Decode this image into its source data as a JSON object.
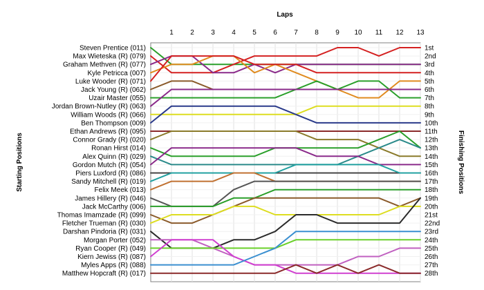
{
  "chart_data": {
    "type": "line",
    "title": "Laps",
    "ylabel": "Starting Positions",
    "y2label": "Finishing Positions",
    "x": [
      1,
      2,
      3,
      4,
      5,
      6,
      7,
      8,
      9,
      10,
      11,
      12,
      13
    ],
    "finishing_labels": [
      "1st",
      "2nd",
      "3rd",
      "4th",
      "5th",
      "6th",
      "7th",
      "8th",
      "9th",
      "10th",
      "11th",
      "12th",
      "13th",
      "14th",
      "15th",
      "16th",
      "17th",
      "18th",
      "19th",
      "20th",
      "21st",
      "22nd",
      "23rd",
      "24th",
      "25th",
      "26th",
      "27th",
      "28th"
    ],
    "series": [
      {
        "name": "Steven Prentice (011)",
        "color": "#2a9f2a",
        "values": [
          3,
          3,
          3,
          3,
          3,
          3,
          3,
          3,
          3,
          3,
          3,
          3,
          3
        ]
      },
      {
        "name": "Max Wieteska (R) (079)",
        "color": "#d42020",
        "values": [
          4,
          4,
          4,
          3,
          2,
          2,
          2,
          2,
          1,
          1,
          2,
          1,
          1
        ]
      },
      {
        "name": "Graham Methven (R) (077)",
        "color": "#8a2a8a",
        "values": [
          2,
          2,
          4,
          4,
          3,
          4,
          3,
          3,
          3,
          3,
          3,
          3,
          3
        ]
      },
      {
        "name": "Kyle Petricca (007)",
        "color": "#e08b1f",
        "values": [
          3,
          3,
          2,
          2,
          4,
          3,
          4,
          5,
          6,
          7,
          7,
          5,
          5
        ]
      },
      {
        "name": "Luke Wooder (R) (071)",
        "color": "#d42020",
        "values": [
          2,
          2,
          2,
          2,
          3,
          3,
          3,
          4,
          4,
          4,
          4,
          4,
          4
        ]
      },
      {
        "name": "Jack Young (R) (062)",
        "color": "#8a5a2a",
        "values": [
          5,
          5,
          6,
          6,
          6,
          6,
          6,
          6,
          6,
          6,
          6,
          6,
          6
        ]
      },
      {
        "name": "Uzair Master (055)",
        "color": "#2a9f2a",
        "values": [
          7,
          7,
          7,
          7,
          7,
          7,
          6,
          5,
          6,
          5,
          5,
          7,
          7
        ]
      },
      {
        "name": "Jordan Brown-Nutley (R) (063)",
        "color": "#8a2a8a",
        "values": [
          6,
          6,
          6,
          6,
          6,
          6,
          6,
          6,
          6,
          6,
          6,
          6,
          6
        ]
      },
      {
        "name": "William Woods (R) (066)",
        "color": "#dddd20",
        "values": [
          9,
          9,
          9,
          9,
          9,
          9,
          9,
          8,
          8,
          8,
          8,
          8,
          8
        ]
      },
      {
        "name": "Ben Thompson (009)",
        "color": "#2a3a8a",
        "values": [
          8,
          8,
          8,
          8,
          8,
          8,
          9,
          10,
          10,
          10,
          10,
          10,
          10
        ]
      },
      {
        "name": "Ethan Andrews (R) (095)",
        "color": "#8a2a2a",
        "values": [
          11,
          11,
          11,
          11,
          11,
          11,
          11,
          11,
          11,
          11,
          11,
          11,
          11
        ]
      },
      {
        "name": "Connor Grady (R) (020)",
        "color": "#8a7a2a",
        "values": [
          11,
          11,
          11,
          11,
          11,
          11,
          11,
          12,
          12,
          12,
          13,
          14,
          14
        ]
      },
      {
        "name": "Ronan Hirst (014)",
        "color": "#2a9f2a",
        "values": [
          14,
          14,
          14,
          14,
          14,
          13,
          13,
          13,
          13,
          13,
          12,
          11,
          13
        ]
      },
      {
        "name": "Alex Quinn (R) (029)",
        "color": "#2a8a8a",
        "values": [
          15,
          15,
          15,
          15,
          15,
          15,
          15,
          15,
          15,
          14,
          13,
          12,
          13
        ]
      },
      {
        "name": "Gordon Mutch (R) (054)",
        "color": "#8a2a8a",
        "values": [
          13,
          13,
          13,
          13,
          13,
          13,
          13,
          14,
          14,
          14,
          15,
          15,
          15
        ]
      },
      {
        "name": "Piers Luxford (R) (086)",
        "color": "#444444",
        "values": [
          16,
          16,
          16,
          16,
          16,
          16,
          16,
          16,
          16,
          16,
          16,
          16,
          16
        ]
      },
      {
        "name": "Sandy Mitchell (R) (019)",
        "color": "#20a0a0",
        "values": [
          16,
          16,
          16,
          16,
          16,
          16,
          15,
          15,
          15,
          15,
          15,
          16,
          16
        ]
      },
      {
        "name": "Felix Meek (013)",
        "color": "#c07030",
        "values": [
          17,
          17,
          17,
          16,
          16,
          17,
          17,
          17,
          17,
          17,
          17,
          17,
          17
        ]
      },
      {
        "name": "James Hillery (R) (046)",
        "color": "#555555",
        "values": [
          20,
          20,
          20,
          18,
          17,
          17,
          17,
          17,
          17,
          17,
          17,
          17,
          17
        ]
      },
      {
        "name": "Jack McCarthy (006)",
        "color": "#2a9f2a",
        "values": [
          20,
          20,
          20,
          19,
          19,
          18,
          18,
          18,
          18,
          18,
          18,
          18,
          18
        ]
      },
      {
        "name": "Thomas Imamzade (R) (099)",
        "color": "#8a5a2a",
        "values": [
          22,
          22,
          21,
          20,
          19,
          19,
          19,
          19,
          19,
          19,
          19,
          20,
          19
        ]
      },
      {
        "name": "Fletcher Trueman (R) (030)",
        "color": "#dddd20",
        "values": [
          21,
          21,
          21,
          20,
          20,
          21,
          21,
          21,
          21,
          21,
          21,
          20,
          20
        ]
      },
      {
        "name": "Darshan Pindoria (R) (031)",
        "color": "#2a2a2a",
        "values": [
          25,
          25,
          25,
          24,
          24,
          23,
          21,
          21,
          22,
          22,
          22,
          22,
          19
        ]
      },
      {
        "name": "Morgan Porter (052)",
        "color": "#c060c0",
        "values": [
          24,
          24,
          25,
          26,
          27,
          27,
          27,
          27,
          27,
          26,
          26,
          25,
          25
        ]
      },
      {
        "name": "Ryan Cooper (R) (049)",
        "color": "#6ad02a",
        "values": [
          25,
          25,
          25,
          25,
          25,
          25,
          24,
          24,
          24,
          24,
          24,
          24,
          24
        ]
      },
      {
        "name": "Kiern Jewiss (R) (087)",
        "color": "#d040d0",
        "values": [
          24,
          24,
          24,
          26,
          27,
          27,
          28,
          28,
          28,
          28,
          28,
          28,
          28
        ]
      },
      {
        "name": "Myles Apps (R) (088)",
        "color": "#3a8fd0",
        "values": [
          27,
          27,
          27,
          27,
          26,
          25,
          23,
          23,
          23,
          23,
          23,
          23,
          23
        ]
      },
      {
        "name": "Matthew Hopcraft (R) (017)",
        "color": "#8a2a2a",
        "values": [
          28,
          28,
          28,
          28,
          28,
          28,
          27,
          28,
          27,
          28,
          27,
          28,
          28
        ]
      }
    ],
    "xlim": [
      0.6,
      13
    ],
    "ylim": [
      1,
      28
    ],
    "grid": true
  }
}
